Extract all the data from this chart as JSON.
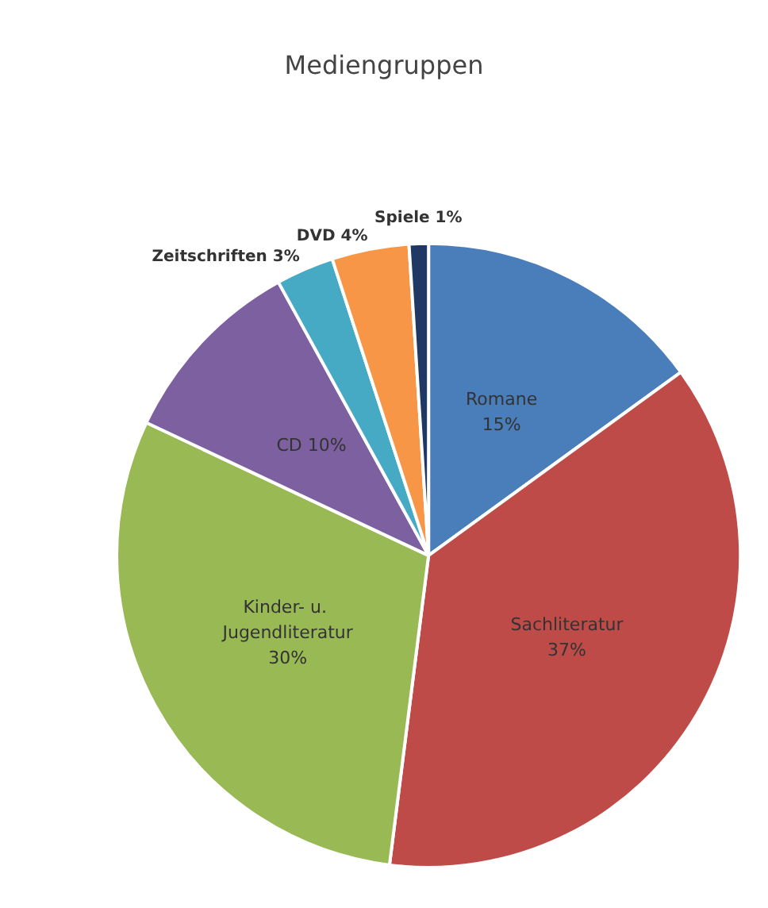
{
  "chart_data": {
    "type": "pie",
    "title": "Mediengruppen",
    "categories": [
      "Romane",
      "Sachliteratur",
      "Kinder- u. Jugendliteratur",
      "CD",
      "Zeitschriften",
      "DVD",
      "Spiele"
    ],
    "values": [
      15,
      37,
      30,
      10,
      3,
      4,
      1
    ],
    "colors": [
      "#4a7ebb",
      "#be4b48",
      "#98b954",
      "#7d60a0",
      "#46aac5",
      "#f79646",
      "#1f3864"
    ],
    "value_labels": [
      "15%",
      "37%",
      "30%",
      "10%",
      "3%",
      "4%",
      "1%"
    ],
    "legend": false
  }
}
